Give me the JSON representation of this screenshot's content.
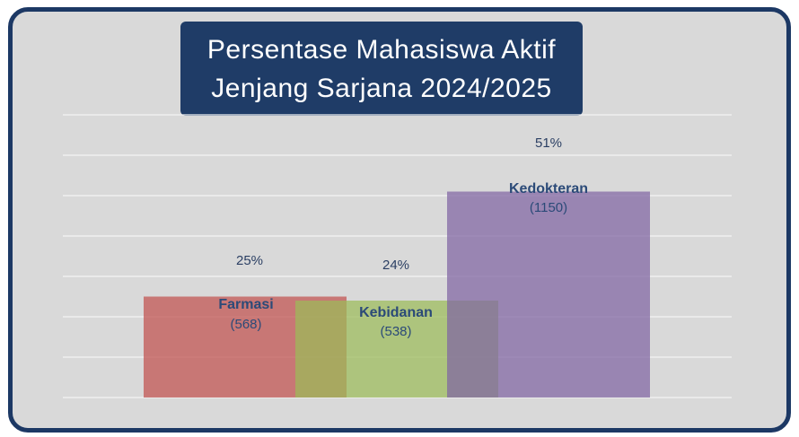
{
  "title_line1": "Persentase Mahasiswa Aktif",
  "title_line2": "Jenjang Sarjana 2024/2025",
  "colors": {
    "frame_border": "#1c3864",
    "background": "#d9d9d9",
    "title_box": "#1f3c67",
    "label_text": "#2b4a78"
  },
  "chart_data": {
    "type": "bar",
    "title": "Persentase Mahasiswa Aktif Jenjang Sarjana 2024/2025",
    "ylim": [
      0,
      70
    ],
    "grid": true,
    "legend": "none",
    "categories": [
      "Farmasi",
      "Kebidanan",
      "Kedokteran"
    ],
    "series": [
      {
        "values": [
          25,
          24,
          51
        ],
        "value_labels": [
          "25%",
          "24%",
          "51%"
        ],
        "counts": [
          "(568)",
          "(538)",
          "(1150)"
        ],
        "colors": [
          "#c0504d",
          "#9bbb59",
          "#8064a2"
        ]
      }
    ]
  }
}
